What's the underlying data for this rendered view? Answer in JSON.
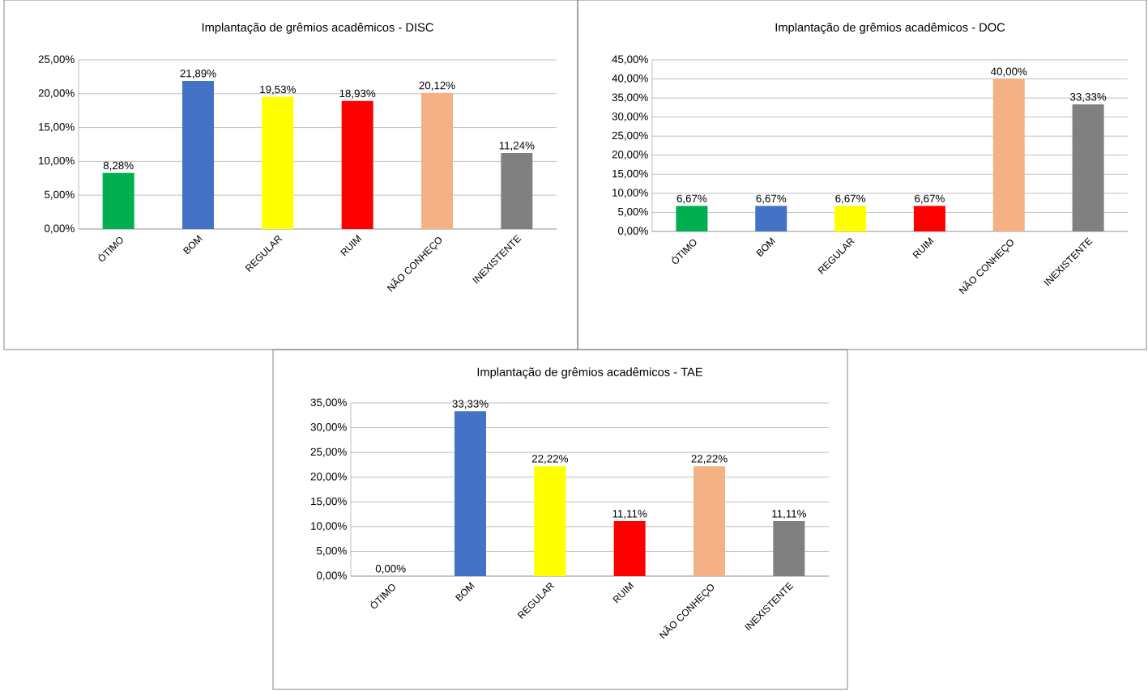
{
  "chart_data": [
    {
      "type": "bar",
      "title": "Implantação de grêmios acadêmicos - DISC",
      "categories": [
        "ÓTIMO",
        "BOM",
        "REGULAR",
        "RUIM",
        "NÃO CONHEÇO",
        "INEXISTENTE"
      ],
      "values": [
        8.28,
        21.89,
        19.53,
        18.93,
        20.12,
        11.24
      ],
      "value_labels": [
        "8,28%",
        "21,89%",
        "19,53%",
        "18,93%",
        "20,12%",
        "11,24%"
      ],
      "colors": [
        "#00b050",
        "#4472c4",
        "#ffff00",
        "#ff0000",
        "#f4b183",
        "#808080"
      ],
      "ylim": [
        0,
        25
      ],
      "yticks": [
        {
          "value": 0,
          "label": "0,00%"
        },
        {
          "value": 5,
          "label": "5,00%"
        },
        {
          "value": 10,
          "label": "10,00%"
        },
        {
          "value": 15,
          "label": "15,00%"
        },
        {
          "value": 20,
          "label": "20,00%"
        },
        {
          "value": 25,
          "label": "25,00%"
        }
      ],
      "grid": "y"
    },
    {
      "type": "bar",
      "title": "Implantação de grêmios acadêmicos - DOC",
      "categories": [
        "ÓTIMO",
        "BOM",
        "REGULAR",
        "RUIM",
        "NÃO CONHEÇO",
        "INEXISTENTE"
      ],
      "values": [
        6.67,
        6.67,
        6.67,
        6.67,
        40.0,
        33.33
      ],
      "value_labels": [
        "6,67%",
        "6,67%",
        "6,67%",
        "6,67%",
        "40,00%",
        "33,33%"
      ],
      "colors": [
        "#00b050",
        "#4472c4",
        "#ffff00",
        "#ff0000",
        "#f4b183",
        "#808080"
      ],
      "ylim": [
        0,
        45
      ],
      "yticks": [
        {
          "value": 0,
          "label": "0,00%"
        },
        {
          "value": 5,
          "label": "5,00%"
        },
        {
          "value": 10,
          "label": "10,00%"
        },
        {
          "value": 15,
          "label": "15,00%"
        },
        {
          "value": 20,
          "label": "20,00%"
        },
        {
          "value": 25,
          "label": "25,00%"
        },
        {
          "value": 30,
          "label": "30,00%"
        },
        {
          "value": 35,
          "label": "35,00%"
        },
        {
          "value": 40,
          "label": "40,00%"
        },
        {
          "value": 45,
          "label": "45,00%"
        }
      ],
      "grid": "y"
    },
    {
      "type": "bar",
      "title": "Implantação de grêmios acadêmicos - TAE",
      "categories": [
        "ÓTIMO",
        "BOM",
        "REGULAR",
        "RUIM",
        "NÃO CONHEÇO",
        "INEXISTENTE"
      ],
      "values": [
        0.0,
        33.33,
        22.22,
        11.11,
        22.22,
        11.11
      ],
      "value_labels": [
        "0,00%",
        "33,33%",
        "22,22%",
        "11,11%",
        "22,22%",
        "11,11%"
      ],
      "colors": [
        "#00b050",
        "#4472c4",
        "#ffff00",
        "#ff0000",
        "#f4b183",
        "#808080"
      ],
      "ylim": [
        0,
        35
      ],
      "yticks": [
        {
          "value": 0,
          "label": "0,00%"
        },
        {
          "value": 5,
          "label": "5,00%"
        },
        {
          "value": 10,
          "label": "10,00%"
        },
        {
          "value": 15,
          "label": "15,00%"
        },
        {
          "value": 20,
          "label": "20,00%"
        },
        {
          "value": 25,
          "label": "25,00%"
        },
        {
          "value": 30,
          "label": "30,00%"
        },
        {
          "value": 35,
          "label": "35,00%"
        }
      ],
      "grid": "y"
    }
  ]
}
